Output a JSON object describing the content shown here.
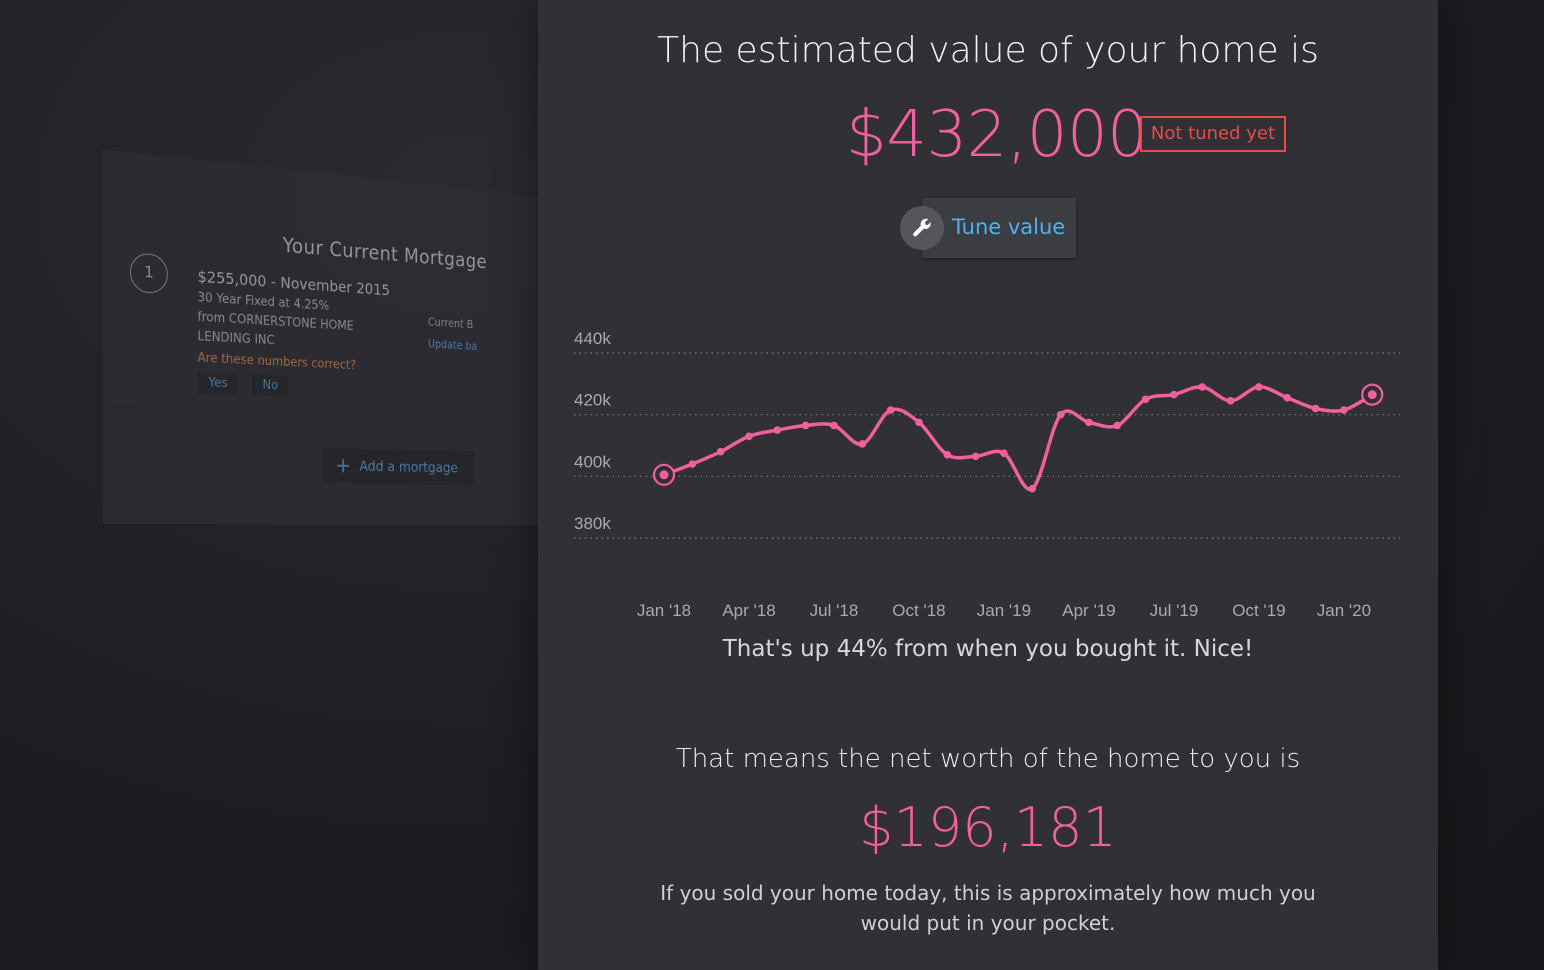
{
  "mortgage_card": {
    "title": "Your Current Mortgage",
    "index": "1",
    "amount": "$255,000",
    "separator": " - ",
    "date": "November 2015",
    "terms": "30 Year Fixed at 4.25%",
    "lender_line1": "from CORNERSTONE HOME",
    "lender_line2": "LENDING INC",
    "question": "Are these numbers correct?",
    "yes_label": "Yes",
    "no_label": "No",
    "current_balance_label": "Current B",
    "update_balance_label": "Update ba",
    "add_mortgage_label": "Add a mortgage"
  },
  "estimate": {
    "headline": "The estimated value of your home is",
    "value": "$432,000",
    "badge": "Not tuned yet",
    "tune_label": "Tune value",
    "subline": "That's up 44% from when you bought it. Nice!",
    "networth_label": "That means the net worth of the home to you is",
    "networth_value": "$196,181",
    "explain": "If you sold your home today, this is approximately how much you would put in your pocket."
  },
  "colors": {
    "accent_pink": "#f0609e",
    "badge_red": "#e84a4a",
    "link_blue": "#4fb2f0",
    "panel_bg": "#303035"
  },
  "icons": {
    "tune": "wrench-icon",
    "add": "plus-icon"
  },
  "chart_data": {
    "type": "line",
    "title": "",
    "xlabel": "",
    "ylabel": "",
    "y_ticks": [
      "440k",
      "420k",
      "400k",
      "380k"
    ],
    "y_tick_values": [
      440,
      420,
      400,
      380
    ],
    "ylim": [
      380,
      440
    ],
    "x_tick_labels": [
      "Jan '18",
      "Apr '18",
      "Jul '18",
      "Oct '18",
      "Jan '19",
      "Apr '19",
      "Jul '19",
      "Oct '19",
      "Jan '20"
    ],
    "grid": "horizontal dotted",
    "series": [
      {
        "color": "#f0609e",
        "x": [
          "2018-01",
          "2018-02",
          "2018-03",
          "2018-04",
          "2018-05",
          "2018-06",
          "2018-07",
          "2018-08",
          "2018-09",
          "2018-10",
          "2018-11",
          "2018-12",
          "2019-01",
          "2019-02",
          "2019-03",
          "2019-04",
          "2019-05",
          "2019-06",
          "2019-07",
          "2019-08",
          "2019-09",
          "2019-10",
          "2019-11",
          "2019-12",
          "2020-01",
          "2020-02"
        ],
        "values": [
          400.5,
          404,
          408,
          413,
          415,
          416.5,
          416.5,
          410.5,
          421.5,
          417.5,
          407,
          406.5,
          407.5,
          396,
          420,
          417.5,
          416.5,
          425,
          426.5,
          429,
          424.5,
          429,
          425.5,
          422,
          421.5,
          426.5
        ]
      }
    ]
  }
}
